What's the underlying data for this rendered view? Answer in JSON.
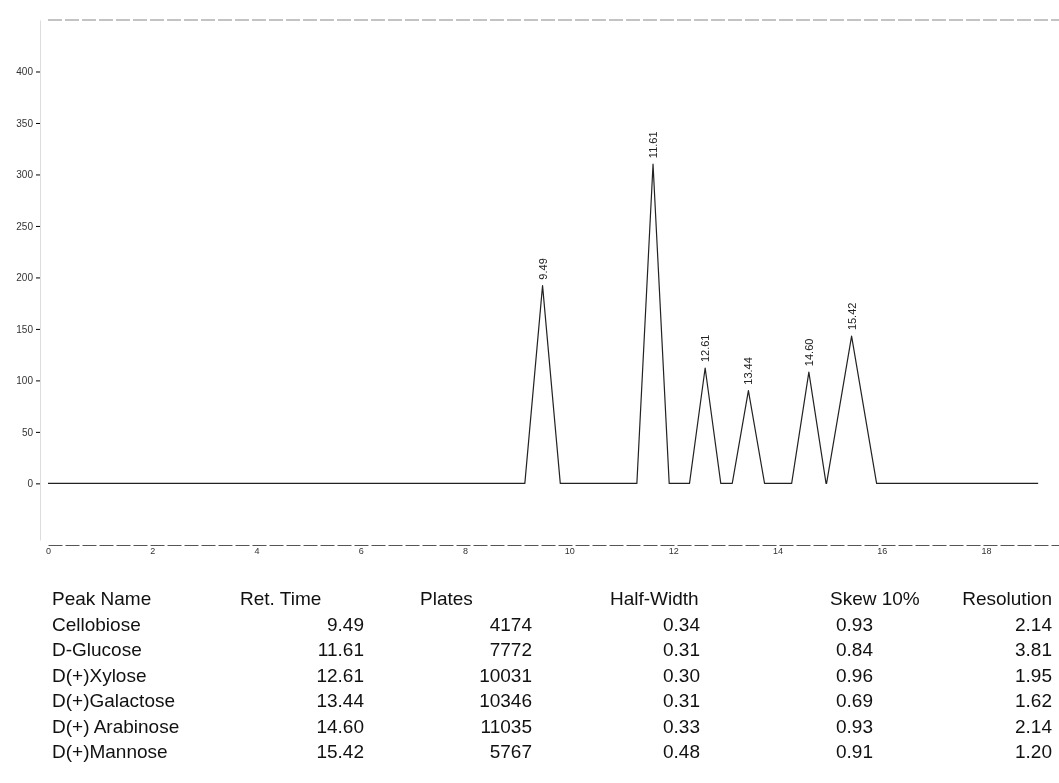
{
  "chart_data": [
    {
      "type": "line",
      "x": [
        0,
        9.15,
        9.49,
        9.83,
        11.3,
        11.61,
        11.92,
        12.31,
        12.61,
        12.91,
        13.13,
        13.44,
        13.75,
        14.27,
        14.6,
        14.93,
        14.94,
        15.42,
        15.9,
        19
      ],
      "series": [
        {
          "color": "#222222",
          "values": [
            0,
            0,
            192,
            0,
            0,
            310,
            0,
            0,
            112,
            0,
            0,
            90,
            0,
            0,
            108,
            0,
            0,
            143,
            0,
            0
          ]
        }
      ],
      "xlim": [
        0,
        19.4
      ],
      "ylim": [
        -55,
        450
      ],
      "xticks": [
        0,
        2,
        4,
        6,
        8,
        10,
        12,
        14,
        16,
        18
      ],
      "yticks": [
        0,
        50,
        100,
        150,
        200,
        250,
        300,
        350,
        400
      ],
      "marker": "none",
      "line_style": "solid",
      "annotations": [
        {
          "text": "9.49",
          "x": 9.49,
          "y": 192
        },
        {
          "text": "11.61",
          "x": 11.61,
          "y": 310
        },
        {
          "text": "12.61",
          "x": 12.61,
          "y": 112
        },
        {
          "text": "13.44",
          "x": 13.44,
          "y": 90
        },
        {
          "text": "14.60",
          "x": 14.6,
          "y": 108
        },
        {
          "text": "15.42",
          "x": 15.42,
          "y": 143
        }
      ]
    },
    {
      "type": "other",
      "annotations": [
        "Peak Name",
        "Ret. Time",
        "Plates",
        "Half-Width",
        "Skew 10%",
        "Resolution",
        "Cellobiose",
        "9.49",
        "4174",
        "0.34",
        "0.93",
        "2.14",
        "D-Glucose",
        "11.61",
        "7772",
        "0.31",
        "0.84",
        "3.81",
        "D(+)Xylose",
        "12.61",
        "10031",
        "0.30",
        "0.96",
        "1.95",
        "D(+)Galactose",
        "13.44",
        "10346",
        "0.31",
        "0.69",
        "1.62",
        "D(+) Arabinose",
        "14.60",
        "11035",
        "0.33",
        "0.93",
        "2.14",
        "D(+)Mannose",
        "15.42",
        "5767",
        "0.48",
        "0.91",
        "1.20"
      ]
    }
  ]
}
